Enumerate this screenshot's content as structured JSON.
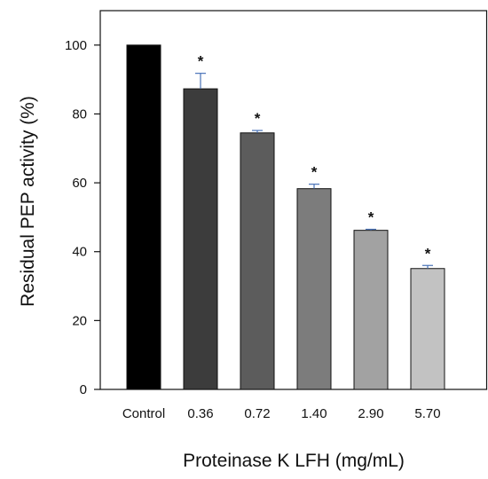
{
  "chart_data": {
    "type": "bar",
    "title": "",
    "xlabel": "Proteinase K LFH (mg/mL)",
    "ylabel": "Residual PEP activity (%)",
    "ylim": [
      0,
      110
    ],
    "yticks": [
      0,
      20,
      40,
      60,
      80,
      100
    ],
    "grid": false,
    "legend": "none",
    "categories": [
      "Control",
      "0.36",
      "0.72",
      "1.40",
      "2.90",
      "5.70"
    ],
    "series": [
      {
        "values": [
          100,
          87.3,
          74.5,
          58.3,
          46.2,
          35.1
        ],
        "errors": [
          0,
          4.5,
          0.7,
          1.3,
          0.3,
          0.9
        ],
        "annotations": [
          "",
          "*",
          "*",
          "*",
          "*",
          "*"
        ]
      }
    ],
    "colors": [
      "#000000",
      "#3c3c3c",
      "#5c5c5c",
      "#7c7c7c",
      "#a2a2a2",
      "#c2c2c2"
    ],
    "error_bar_color": "#4a73b8"
  }
}
